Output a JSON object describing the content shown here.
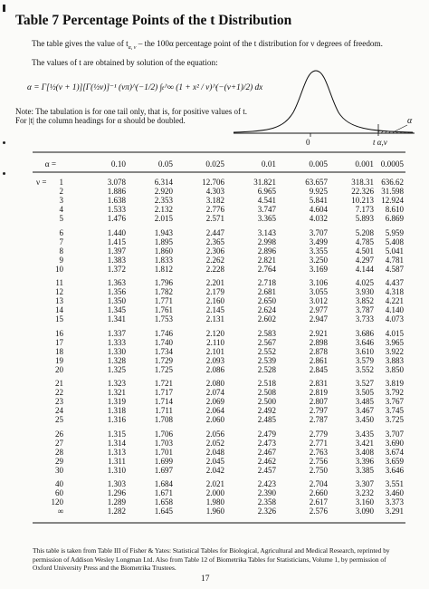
{
  "title": "Table 7  Percentage Points of the t Distribution",
  "intro": "The table gives the value of t",
  "intro_sub": "α, ν",
  "intro_rest": " – the 100α percentage point of the t distribution for ν degrees of freedom.",
  "values_line": "The values of t are obtained by solution of the equation:",
  "equation": "α = Γ[½(ν + 1)][Γ(½ν)]⁻¹ (νπ)^(−1/2) ∫ₜ^∞ (1 + x² / ν)^(−(ν+1)/2) dx",
  "note_line1": "Note: The tabulation is for one tail only, that is, for positive values of t.",
  "note_line2": "For |t| the column headings for α should be doubled.",
  "figure": {
    "zero_label": "0",
    "t_label": "t α,ν",
    "alpha_label": "α"
  },
  "table": {
    "corner_label": "α =",
    "nu_label": "ν =",
    "columns": [
      "0.10",
      "0.05",
      "0.025",
      "0.01",
      "0.005",
      "0.001",
      "0.0005"
    ],
    "rows": [
      {
        "nu": "1",
        "values": [
          "3.078",
          "6.314",
          "12.706",
          "31.821",
          "63.657",
          "318.31",
          "636.62"
        ]
      },
      {
        "nu": "2",
        "values": [
          "1.886",
          "2.920",
          "4.303",
          "6.965",
          "9.925",
          "22.326",
          "31.598"
        ]
      },
      {
        "nu": "3",
        "values": [
          "1.638",
          "2.353",
          "3.182",
          "4.541",
          "5.841",
          "10.213",
          "12.924"
        ]
      },
      {
        "nu": "4",
        "values": [
          "1.533",
          "2.132",
          "2.776",
          "3.747",
          "4.604",
          "7.173",
          "8.610"
        ]
      },
      {
        "nu": "5",
        "values": [
          "1.476",
          "2.015",
          "2.571",
          "3.365",
          "4.032",
          "5.893",
          "6.869"
        ]
      },
      {
        "nu": "6",
        "values": [
          "1.440",
          "1.943",
          "2.447",
          "3.143",
          "3.707",
          "5.208",
          "5.959"
        ]
      },
      {
        "nu": "7",
        "values": [
          "1.415",
          "1.895",
          "2.365",
          "2.998",
          "3.499",
          "4.785",
          "5.408"
        ]
      },
      {
        "nu": "8",
        "values": [
          "1.397",
          "1.860",
          "2.306",
          "2.896",
          "3.355",
          "4.501",
          "5.041"
        ]
      },
      {
        "nu": "9",
        "values": [
          "1.383",
          "1.833",
          "2.262",
          "2.821",
          "3.250",
          "4.297",
          "4.781"
        ]
      },
      {
        "nu": "10",
        "values": [
          "1.372",
          "1.812",
          "2.228",
          "2.764",
          "3.169",
          "4.144",
          "4.587"
        ]
      },
      {
        "nu": "11",
        "values": [
          "1.363",
          "1.796",
          "2.201",
          "2.718",
          "3.106",
          "4.025",
          "4.437"
        ]
      },
      {
        "nu": "12",
        "values": [
          "1.356",
          "1.782",
          "2.179",
          "2.681",
          "3.055",
          "3.930",
          "4.318"
        ]
      },
      {
        "nu": "13",
        "values": [
          "1.350",
          "1.771",
          "2.160",
          "2.650",
          "3.012",
          "3.852",
          "4.221"
        ]
      },
      {
        "nu": "14",
        "values": [
          "1.345",
          "1.761",
          "2.145",
          "2.624",
          "2.977",
          "3.787",
          "4.140"
        ]
      },
      {
        "nu": "15",
        "values": [
          "1.341",
          "1.753",
          "2.131",
          "2.602",
          "2.947",
          "3.733",
          "4.073"
        ]
      },
      {
        "nu": "16",
        "values": [
          "1.337",
          "1.746",
          "2.120",
          "2.583",
          "2.921",
          "3.686",
          "4.015"
        ]
      },
      {
        "nu": "17",
        "values": [
          "1.333",
          "1.740",
          "2.110",
          "2.567",
          "2.898",
          "3.646",
          "3.965"
        ]
      },
      {
        "nu": "18",
        "values": [
          "1.330",
          "1.734",
          "2.101",
          "2.552",
          "2.878",
          "3.610",
          "3.922"
        ]
      },
      {
        "nu": "19",
        "values": [
          "1.328",
          "1.729",
          "2.093",
          "2.539",
          "2.861",
          "3.579",
          "3.883"
        ]
      },
      {
        "nu": "20",
        "values": [
          "1.325",
          "1.725",
          "2.086",
          "2.528",
          "2.845",
          "3.552",
          "3.850"
        ]
      },
      {
        "nu": "21",
        "values": [
          "1.323",
          "1.721",
          "2.080",
          "2.518",
          "2.831",
          "3.527",
          "3.819"
        ]
      },
      {
        "nu": "22",
        "values": [
          "1.321",
          "1.717",
          "2.074",
          "2.508",
          "2.819",
          "3.505",
          "3.792"
        ]
      },
      {
        "nu": "23",
        "values": [
          "1.319",
          "1.714",
          "2.069",
          "2.500",
          "2.807",
          "3.485",
          "3.767"
        ]
      },
      {
        "nu": "24",
        "values": [
          "1.318",
          "1.711",
          "2.064",
          "2.492",
          "2.797",
          "3.467",
          "3.745"
        ]
      },
      {
        "nu": "25",
        "values": [
          "1.316",
          "1.708",
          "2.060",
          "2.485",
          "2.787",
          "3.450",
          "3.725"
        ]
      },
      {
        "nu": "26",
        "values": [
          "1.315",
          "1.706",
          "2.056",
          "2.479",
          "2.779",
          "3.435",
          "3.707"
        ]
      },
      {
        "nu": "27",
        "values": [
          "1.314",
          "1.703",
          "2.052",
          "2.473",
          "2.771",
          "3.421",
          "3.690"
        ]
      },
      {
        "nu": "28",
        "values": [
          "1.313",
          "1.701",
          "2.048",
          "2.467",
          "2.763",
          "3.408",
          "3.674"
        ]
      },
      {
        "nu": "29",
        "values": [
          "1.311",
          "1.699",
          "2.045",
          "2.462",
          "2.756",
          "3.396",
          "3.659"
        ]
      },
      {
        "nu": "30",
        "values": [
          "1.310",
          "1.697",
          "2.042",
          "2.457",
          "2.750",
          "3.385",
          "3.646"
        ]
      },
      {
        "nu": "40",
        "values": [
          "1.303",
          "1.684",
          "2.021",
          "2.423",
          "2.704",
          "3.307",
          "3.551"
        ]
      },
      {
        "nu": "60",
        "values": [
          "1.296",
          "1.671",
          "2.000",
          "2.390",
          "2.660",
          "3.232",
          "3.460"
        ]
      },
      {
        "nu": "120",
        "values": [
          "1.289",
          "1.658",
          "1.980",
          "2.358",
          "2.617",
          "3.160",
          "3.373"
        ]
      },
      {
        "nu": "∞",
        "values": [
          "1.282",
          "1.645",
          "1.960",
          "2.326",
          "2.576",
          "3.090",
          "3.291"
        ]
      }
    ]
  },
  "footnote": "This table is taken from Table III of Fisher & Yates: Statistical Tables for Biological, Agricultural and Medical Research, reprinted by permission of Addison Wesley Longman Ltd. Also from Table 12 of Biometrika Tables for Statisticians, Volume 1, by permission of Oxford University Press and the Biometrika Trustees.",
  "page_number": "17"
}
